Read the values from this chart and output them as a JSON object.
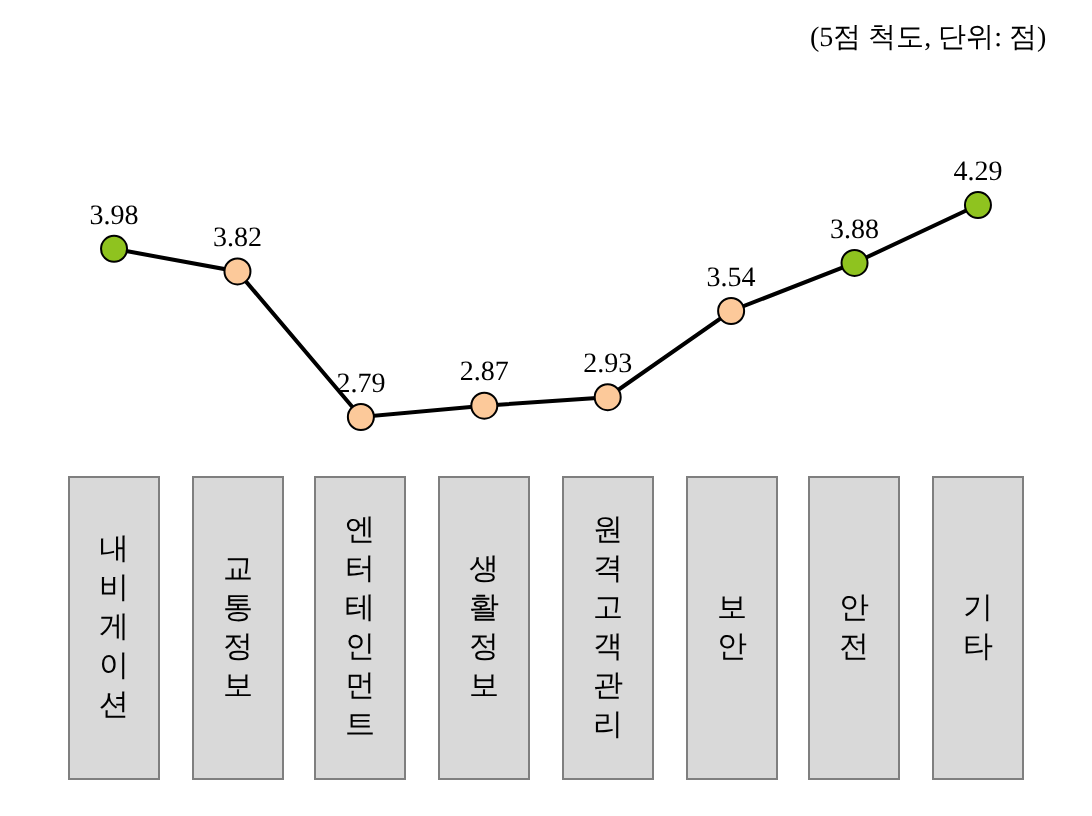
{
  "chart_data": {
    "type": "line",
    "categories": [
      "내비게이션",
      "교통정보",
      "엔터테인먼트",
      "생활정보",
      "원격고객관리",
      "보안",
      "안전",
      "기타"
    ],
    "values": [
      3.98,
      3.82,
      2.79,
      2.87,
      2.93,
      3.54,
      3.88,
      4.29
    ],
    "colors": [
      "#8fc31f",
      "#fcc99a",
      "#fcc99a",
      "#fcc99a",
      "#fcc99a",
      "#fcc99a",
      "#8fc31f",
      "#8fc31f"
    ],
    "color": "#000000",
    "marker": "circle",
    "data_labels": true,
    "annotations": [
      "(5점 척도, 단위: 점)"
    ],
    "legend": false
  }
}
